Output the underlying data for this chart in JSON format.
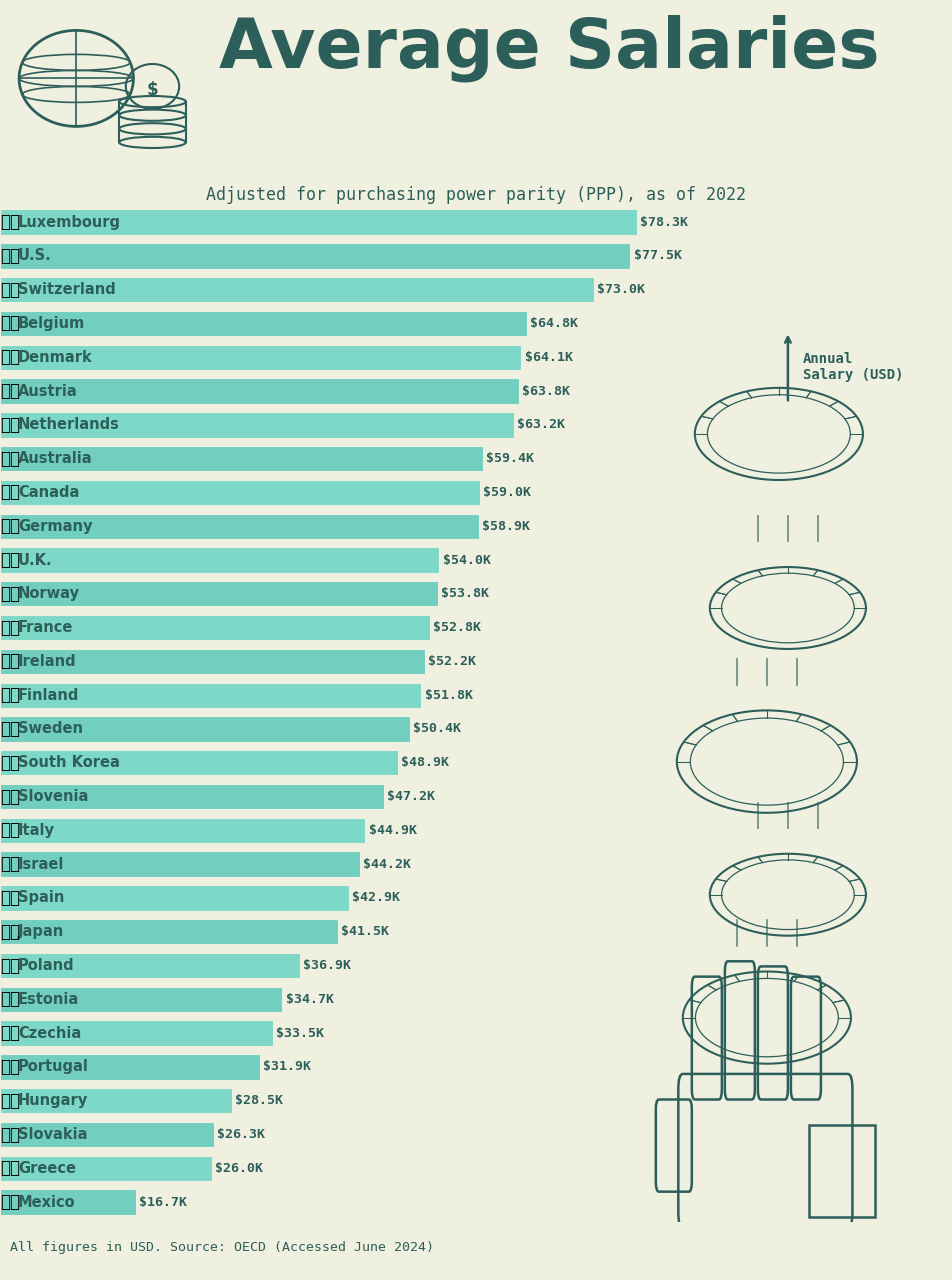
{
  "title": "Average Salaries",
  "subtitle": "Adjusted for purchasing power parity (PPP), as of 2022",
  "footer": "All figures in USD. Source: OECD (Accessed June 2024)",
  "background_color": "#f0f0e0",
  "bar_color": "#7dd8c8",
  "text_color": "#2d5f5a",
  "dark_color": "#2d5f5a",
  "countries": [
    "Luxembourg",
    "U.S.",
    "Switzerland",
    "Belgium",
    "Denmark",
    "Austria",
    "Netherlands",
    "Australia",
    "Canada",
    "Germany",
    "U.K.",
    "Norway",
    "France",
    "Ireland",
    "Finland",
    "Sweden",
    "South Korea",
    "Slovenia",
    "Italy",
    "Israel",
    "Spain",
    "Japan",
    "Poland",
    "Estonia",
    "Czechia",
    "Portugal",
    "Hungary",
    "Slovakia",
    "Greece",
    "Mexico"
  ],
  "values": [
    78.3,
    77.5,
    73.0,
    64.8,
    64.1,
    63.8,
    63.2,
    59.4,
    59.0,
    58.9,
    54.0,
    53.8,
    52.8,
    52.2,
    51.8,
    50.4,
    48.9,
    47.2,
    44.9,
    44.2,
    42.9,
    41.5,
    36.9,
    34.7,
    33.5,
    31.9,
    28.5,
    26.3,
    26.0,
    16.7
  ],
  "labels": [
    "$78.3K",
    "$77.5K",
    "$73.0K",
    "$64.8K",
    "$64.1K",
    "$63.8K",
    "$63.2K",
    "$59.4K",
    "$59.0K",
    "$58.9K",
    "$54.0K",
    "$53.8K",
    "$52.8K",
    "$52.2K",
    "$51.8K",
    "$50.4K",
    "$48.9K",
    "$47.2K",
    "$44.9K",
    "$44.2K",
    "$42.9K",
    "$41.5K",
    "$36.9K",
    "$34.7K",
    "$33.5K",
    "$31.9K",
    "$28.5K",
    "$26.3K",
    "$26.0K",
    "$16.7K"
  ],
  "flag_emojis": [
    "🇱🇺",
    "🇺🇸",
    "🇨🇭",
    "🇧🇪",
    "🇩🇰",
    "🇦🇹",
    "🇳🇱",
    "🇦🇺",
    "🇨🇦",
    "🇩🇪",
    "🇬🇧",
    "🇳🇴",
    "🇫🇷",
    "🇮🇪",
    "🇫🇮",
    "🇸🇪",
    "🇰🇷",
    "🇸🇮",
    "🇮🇹",
    "🇮🇱",
    "🇪🇸",
    "🇯🇵",
    "🇵🇱",
    "🇪🇪",
    "🇨🇿",
    "🇵🇹",
    "🇭🇺",
    "🇸🇰",
    "🇬🇷",
    "🇲🇽"
  ],
  "annotation_text": "Annual\nSalary (USD)",
  "title_fontsize": 50,
  "subtitle_fontsize": 12,
  "bar_label_fontsize": 9.5,
  "country_fontsize": 10.5,
  "footer_fontsize": 9.5,
  "flag_fontsize": 12
}
